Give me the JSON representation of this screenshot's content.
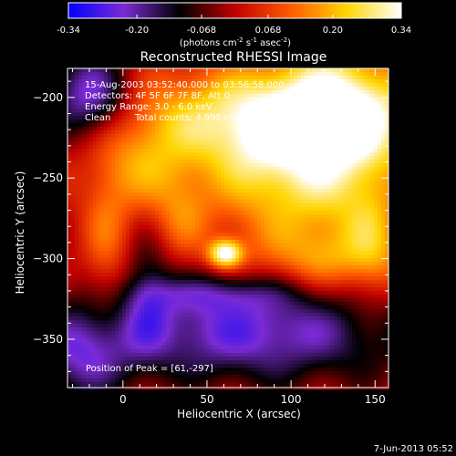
{
  "colorbar": {
    "ticks": [
      "-0.34",
      "-0.20",
      "-0.068",
      "0.068",
      "0.20",
      "0.34"
    ],
    "unit_prefix": "(photons cm",
    "unit_exp1": "-2",
    "unit_mid1": " s",
    "unit_exp2": "-1",
    "unit_mid2": " asec",
    "unit_exp3": "-2",
    "unit_suffix": ")"
  },
  "annotations": {
    "time_range": "15-Aug-2003 03:52:40.000 to 03:56:58.000",
    "detectors": "Detectors: 4F 5F 6F 7F 8F, Att 0",
    "energy": "Energy Range: 3.0 - 6.0 keV",
    "algorithm": "Clean",
    "counts": "Total counts: 4.99E+04",
    "peak": "Position of Peak = [61,-297]"
  },
  "footer": {
    "date": "7-Jun-2013 05:52"
  },
  "chart_data": {
    "type": "heatmap",
    "title": "Reconstructed RHESSI Image",
    "xlabel": "Heliocentric X (arcsec)",
    "ylabel": "Heliocentric Y (arcsec)",
    "xlim": [
      -33,
      158
    ],
    "ylim": [
      -380,
      -182
    ],
    "x_ticks": [
      0,
      50,
      100,
      150
    ],
    "y_ticks": [
      -200,
      -250,
      -300,
      -350
    ],
    "color_range": [
      -0.34,
      0.34
    ],
    "peak": [
      61,
      -297
    ],
    "colors": {
      "cmap_stops": [
        "#0000ff",
        "#7b2bd6",
        "#000000",
        "#c00000",
        "#ff5a00",
        "#ffd400",
        "#ffffff"
      ],
      "background": "#000000",
      "text": "#ffffff"
    },
    "sources": [
      {
        "x": 100,
        "y": -212,
        "sx": 70,
        "sy": 22,
        "amp": 0.3
      },
      {
        "x": 61,
        "y": -297,
        "sx": 7,
        "sy": 6,
        "amp": 0.34
      },
      {
        "x": 125,
        "y": -232,
        "sx": 25,
        "sy": 55,
        "amp": 0.23
      },
      {
        "x": 80,
        "y": -250,
        "sx": 25,
        "sy": 30,
        "amp": 0.16
      },
      {
        "x": 10,
        "y": -245,
        "sx": 22,
        "sy": 22,
        "amp": 0.14
      },
      {
        "x": -10,
        "y": -295,
        "sx": 10,
        "sy": 30,
        "amp": 0.11
      },
      {
        "x": 35,
        "y": -275,
        "sx": 12,
        "sy": 20,
        "amp": 0.1
      },
      {
        "x": 150,
        "y": -290,
        "sx": 12,
        "sy": 30,
        "amp": 0.12
      },
      {
        "x": 115,
        "y": -300,
        "sx": 30,
        "sy": 12,
        "amp": 0.09
      },
      {
        "x": -20,
        "y": -200,
        "sx": 18,
        "sy": 20,
        "amp": -0.28
      },
      {
        "x": 80,
        "y": -345,
        "sx": 70,
        "sy": 22,
        "amp": -0.25
      },
      {
        "x": -25,
        "y": -360,
        "sx": 20,
        "sy": 20,
        "amp": -0.18
      },
      {
        "x": 55,
        "y": -322,
        "sx": 30,
        "sy": 8,
        "amp": -0.1
      },
      {
        "x": 15,
        "y": -320,
        "sx": 10,
        "sy": 25,
        "amp": -0.12
      }
    ]
  }
}
